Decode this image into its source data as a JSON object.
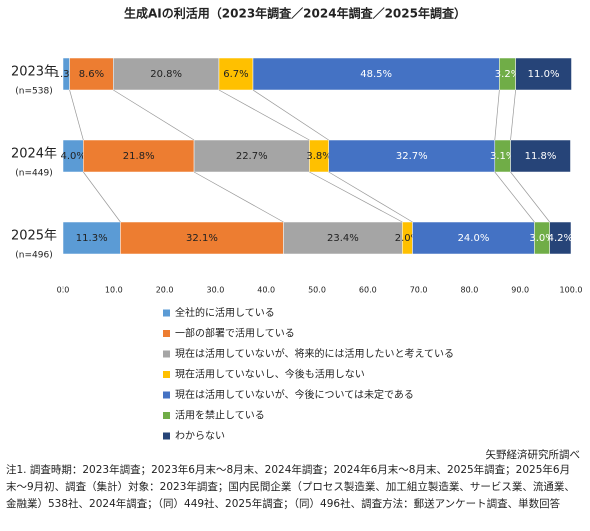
{
  "chart_data": {
    "type": "stacked-bar-horizontal",
    "title": "生成AIの利活用（2023年調査／2024年調査／2025年調査）",
    "categories": [
      "2023年",
      "2024年",
      "2025年"
    ],
    "category_notes": [
      "(n=538)",
      "(n=449)",
      "(n=496)"
    ],
    "series": [
      {
        "name": "全社的に活用している",
        "color": "#5b9bd5",
        "values": [
          1.3,
          4.0,
          11.3
        ],
        "value_labels": [
          "1.3%",
          "4.0%",
          "11.3%"
        ]
      },
      {
        "name": "一部の部署で活用している",
        "color": "#ed7d31",
        "values": [
          8.6,
          21.8,
          32.1
        ],
        "value_labels": [
          "8.6%",
          "21.8%",
          "32.1%"
        ]
      },
      {
        "name": "現在は活用していないが、将来的には活用したいと考えている",
        "color": "#a5a5a5",
        "values": [
          20.8,
          22.7,
          23.4
        ],
        "value_labels": [
          "20.8%",
          "22.7%",
          "23.4%"
        ]
      },
      {
        "name": "現在活用していないし、今後も活用しない",
        "color": "#ffc000",
        "values": [
          6.7,
          3.8,
          2.0
        ],
        "value_labels": [
          "6.7%",
          "3.8%",
          "2.0%"
        ]
      },
      {
        "name": "現在は活用していないが、今後については未定である",
        "color": "#4472c4",
        "values": [
          48.5,
          32.7,
          24.0
        ],
        "value_labels": [
          "48.5%",
          "32.7%",
          "24.0%"
        ]
      },
      {
        "name": "活用を禁止している",
        "color": "#70ad47",
        "values": [
          3.2,
          3.1,
          3.0
        ],
        "value_labels": [
          "3.2%",
          "3.1%",
          "3.0%"
        ]
      },
      {
        "name": "わからない",
        "color": "#264478",
        "values": [
          11.0,
          11.8,
          4.2
        ],
        "value_labels": [
          "11.0%",
          "11.8%",
          "4.2%"
        ]
      }
    ],
    "xlim": [
      0,
      100
    ],
    "xticks": [
      {
        "value": 0,
        "label": "0.0"
      },
      {
        "value": 10,
        "label": "10.0"
      },
      {
        "value": 20,
        "label": "20.0"
      },
      {
        "value": 30,
        "label": "30.0"
      },
      {
        "value": 40,
        "label": "40.0"
      },
      {
        "value": 50,
        "label": "50.0"
      },
      {
        "value": 60,
        "label": "60.0"
      },
      {
        "value": 70,
        "label": "70.0"
      },
      {
        "value": 80,
        "label": "80.0"
      },
      {
        "value": 90,
        "label": "90.0"
      },
      {
        "value": 100,
        "label": "100.0"
      }
    ],
    "source": "矢野経済研究所調べ",
    "note": "注1. 調査時期：2023年調査；2023年6月末〜8月末、2024年調査；2024年6月末〜8月末、2025年調査；2025年6月末〜9月初、調査（集計）対象：2023年調査；国内民間企業（プロセス製造業、加工組立製造業、サービス業、流通業、金融業）538社、2024年調査；（同）449社、2025年調査；（同）496社、調査方法：郵送アンケート調査、単数回答"
  }
}
